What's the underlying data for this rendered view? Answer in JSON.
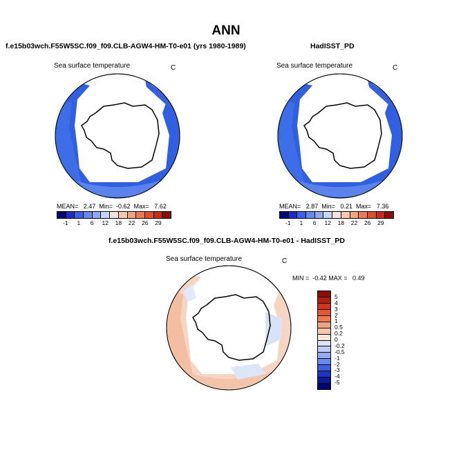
{
  "title": "ANN",
  "panels": [
    {
      "case_title": "f.e15b03wch.F55W5SC.f09_f09.CLB-AGW4-HM-T0-e01 (yrs 1980-1989)",
      "map_title": "Sea surface temperature",
      "units": "C",
      "stats": "MEAN=   2.47  Min=  -0.62  Max=   7.62"
    },
    {
      "case_title": "HadISST_PD",
      "map_title": "Sea surface temperature",
      "units": "C",
      "stats": "MEAN=   2.87  Min=   0.21  Max=   7.36"
    }
  ],
  "abs_colorbar": {
    "labels": [
      "-1",
      "1",
      "6",
      "12",
      "18",
      "22",
      "26",
      "29"
    ],
    "colors": [
      "#04047a",
      "#1a2dc8",
      "#3c5ee8",
      "#6689f2",
      "#8fa9f4",
      "#c6d5f8",
      "#f2e4d8",
      "#f7c8ac",
      "#f5a27f",
      "#ef7a52",
      "#df4f2a",
      "#c72b16",
      "#8f0d08"
    ]
  },
  "diff": {
    "case_title": "f.e15b03wch.F55W5SC.f09_f09.CLB-AGW4-HM-T0-e01 - HadISST_PD",
    "map_title": "Sea surface temperature",
    "units": "C",
    "stats": "MIN =  -0.42 MAX =   0.49",
    "colorbar_labels": [
      "5",
      "4",
      "3",
      "2",
      "1",
      "0.5",
      "0.2",
      "0",
      "-0.2",
      "-0.5",
      "-1",
      "-2",
      "-3",
      "-4",
      "-5"
    ],
    "colorbar_colors": [
      "#8f0d08",
      "#b31c10",
      "#d0351c",
      "#e85630",
      "#f07a54",
      "#f5a17c",
      "#f8c7a8",
      "#f8e7d8",
      "#dbe6f8",
      "#b9cdf6",
      "#8fadf2",
      "#6689ec",
      "#3c5ee2",
      "#1f35c5",
      "#0a1a9a",
      "#04047a"
    ]
  }
}
